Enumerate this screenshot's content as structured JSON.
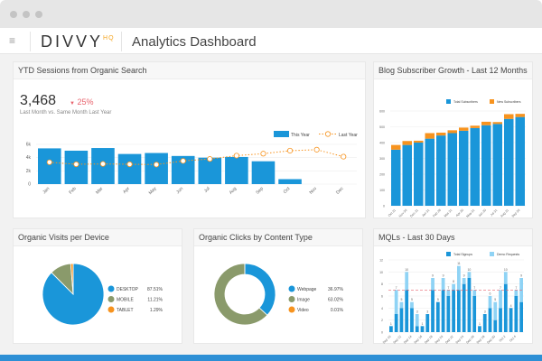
{
  "window": {
    "title": "Analytics Dashboard"
  },
  "header": {
    "logo": "DIVVY",
    "logo_sup": "HQ",
    "title": "Analytics Dashboard"
  },
  "colors": {
    "blue": "#1a96d9",
    "orange": "#f7931e",
    "olive": "#8a9a6b",
    "red": "#e8636d",
    "accent_bar": "#2d8fd5"
  },
  "ytd": {
    "title": "YTD Sessions from Organic Search",
    "value": "3,468",
    "change": "25%",
    "change_icon": "triangle-down-icon",
    "subtitle": "Last Month vs. Same Month Last Year"
  },
  "blog": {
    "title": "Blog Subscriber Growth - Last 12 Months"
  },
  "device": {
    "title": "Organic Visits per Device"
  },
  "clicks": {
    "title": "Organic Clicks by Content Type"
  },
  "mql": {
    "title": "MQLs - Last 30 Days"
  },
  "chart_data": [
    {
      "id": "ytd",
      "type": "bar",
      "categories": [
        "Jan",
        "Feb",
        "Mar",
        "Apr",
        "May",
        "Jun",
        "Jul",
        "Aug",
        "Sep",
        "Oct",
        "Nov",
        "Dec"
      ],
      "series": [
        {
          "name": "This Year",
          "type": "bar",
          "values": [
            5400,
            5050,
            5450,
            4550,
            4700,
            4250,
            4000,
            4100,
            3450,
            750,
            null,
            null
          ]
        },
        {
          "name": "Last Year",
          "type": "line",
          "values": [
            3300,
            3000,
            3050,
            3000,
            2950,
            3500,
            3800,
            4300,
            4600,
            5050,
            5200,
            4150
          ]
        }
      ],
      "yticks": [
        "0",
        "2k",
        "4k",
        "6k"
      ],
      "ylim": [
        0,
        6000
      ],
      "legend": "top-right",
      "grid": true
    },
    {
      "id": "blog",
      "type": "bar",
      "stacked": true,
      "categories": [
        "Oct 31",
        "Nov 30",
        "Dec 31",
        "Jan 31",
        "Feb 28",
        "Mar 31",
        "Apr 30",
        "May 31",
        "Jun 30",
        "Jul 31",
        "Aug 31",
        "Sep 30"
      ],
      "series": [
        {
          "name": "Total Subscribers",
          "values": [
            355,
            385,
            400,
            425,
            445,
            460,
            475,
            492,
            510,
            518,
            550,
            562
          ]
        },
        {
          "name": "New Subscribers",
          "values": [
            30,
            25,
            12,
            35,
            18,
            18,
            20,
            15,
            22,
            12,
            30,
            20
          ]
        }
      ],
      "yticks": [
        "0",
        "100",
        "200",
        "300",
        "400",
        "500",
        "600"
      ],
      "ylim": [
        0,
        600
      ],
      "legend": "top-right",
      "grid": true
    },
    {
      "id": "device",
      "type": "pie",
      "labels": [
        "DESKTOP",
        "MOBILE",
        "TABLET"
      ],
      "values": [
        87.51,
        11.21,
        1.29
      ],
      "display": [
        "87.51%",
        "11.21%",
        "1.29%"
      ]
    },
    {
      "id": "clicks",
      "type": "pie",
      "donut": true,
      "labels": [
        "Webpage",
        "Image",
        "Video"
      ],
      "values": [
        36.97,
        63.02,
        0.01
      ],
      "display": [
        "36.97%",
        "63.02%",
        "0.01%"
      ]
    },
    {
      "id": "mql",
      "type": "bar",
      "stacked": true,
      "categories": [
        "Sep 10",
        "",
        "Sep 12",
        "",
        "Sep 14",
        "",
        "Sep 16",
        "",
        "Sep 18",
        "",
        "Sep 20",
        "",
        "Sep 22",
        "",
        "Sep 24",
        "",
        "Sep 26",
        "",
        "Sep 28",
        "",
        "Sep 30",
        "",
        "Oct 2",
        "",
        "Oct 4",
        ""
      ],
      "series": [
        {
          "name": "Total Signups",
          "values": [
            1,
            3,
            4,
            7,
            4,
            1,
            1,
            3,
            7,
            5,
            7,
            6,
            7,
            7,
            8,
            9,
            6,
            1,
            3,
            4,
            2,
            4,
            8,
            4,
            6,
            5
          ]
        },
        {
          "name": "Demo Requests",
          "values": [
            0,
            4,
            1,
            3,
            1,
            2,
            0,
            0,
            2,
            0,
            2,
            1,
            1,
            4,
            1,
            1,
            1,
            0,
            0,
            2,
            3,
            3,
            2,
            0,
            1,
            4
          ]
        }
      ],
      "totals": [
        1,
        7,
        5,
        10,
        5,
        3,
        1,
        3,
        9,
        5,
        9,
        7,
        8,
        11,
        9,
        10,
        7,
        1,
        3,
        6,
        5,
        7,
        10,
        4,
        7,
        9
      ],
      "target": 7,
      "yticks": [
        "0",
        "2",
        "4",
        "6",
        "8",
        "10",
        "12"
      ],
      "ylim": [
        0,
        12
      ],
      "legend": "top-right",
      "grid": true
    }
  ]
}
